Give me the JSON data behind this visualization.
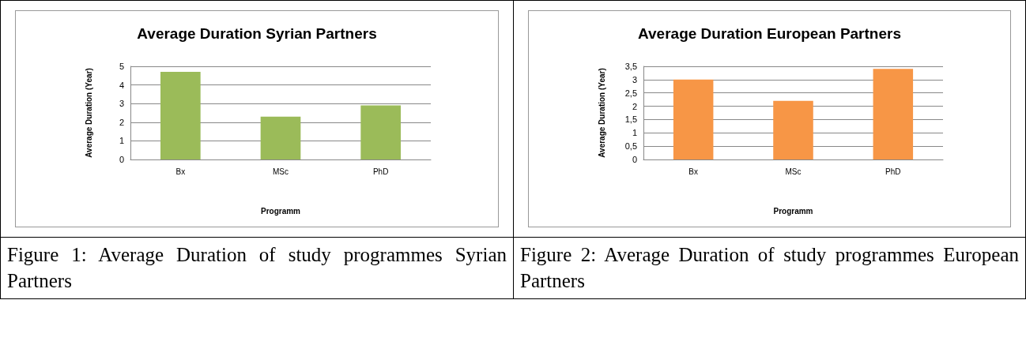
{
  "chart_data": [
    {
      "type": "bar",
      "title": "Average Duration Syrian Partners",
      "xlabel": "Programm",
      "ylabel": "Average Duration (Year)",
      "categories": [
        "Bx",
        "MSc",
        "PhD"
      ],
      "values": [
        4.7,
        2.3,
        2.9
      ],
      "color": "#9bbb59",
      "ylim": [
        0,
        5
      ],
      "yticks": [
        0,
        1,
        2,
        3,
        4,
        5
      ],
      "grid": "y",
      "annotations": [
        "Figure 1: Average Duration of study programmes Syrian Partners"
      ]
    },
    {
      "type": "bar",
      "title": "Average Duration European Partners",
      "xlabel": "Programm",
      "ylabel": "Average Duration (Year)",
      "categories": [
        "Bx",
        "MSc",
        "PhD"
      ],
      "values": [
        3,
        2.2,
        3.4
      ],
      "color": "#f79646",
      "ylim": [
        0,
        3.5
      ],
      "yticks": [
        0,
        {
          "value": 0.5,
          "label": "0,5"
        },
        1,
        {
          "value": 1.5,
          "label": "1,5"
        },
        2,
        {
          "value": 2.5,
          "label": "2,5"
        },
        3,
        {
          "value": 3.5,
          "label": "3,5"
        }
      ],
      "grid": "y",
      "annotations": [
        "Figure 2: Average Duration of study programmes European Partners"
      ]
    }
  ]
}
